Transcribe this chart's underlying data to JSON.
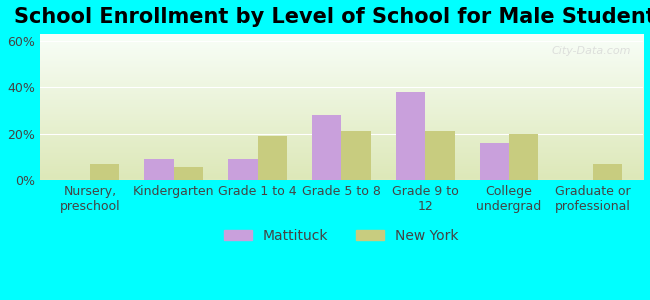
{
  "title": "School Enrollment by Level of School for Male Students",
  "categories": [
    "Nursery,\npreschool",
    "Kindergarten",
    "Grade 1 to 4",
    "Grade 5 to 8",
    "Grade 9 to\n12",
    "College\nundergrad",
    "Graduate or\nprofessional"
  ],
  "mattituck_values": [
    0,
    9,
    9,
    28,
    38,
    16,
    0
  ],
  "newyork_values": [
    7,
    5.5,
    19,
    21,
    21,
    20,
    7
  ],
  "mattituck_color": "#c9a0dc",
  "newyork_color": "#c8cc7f",
  "ylabel_ticks": [
    "0%",
    "20%",
    "40%",
    "60%"
  ],
  "ytick_vals": [
    0,
    20,
    40,
    60
  ],
  "ylim": [
    0,
    63
  ],
  "title_fontsize": 15,
  "tick_fontsize": 9,
  "legend_fontsize": 10,
  "background_color": "#00FFFF",
  "plot_bg_top": "#f8fef8",
  "plot_bg_bottom": "#dde8b8",
  "bar_width": 0.35,
  "watermark": "City-Data.com"
}
